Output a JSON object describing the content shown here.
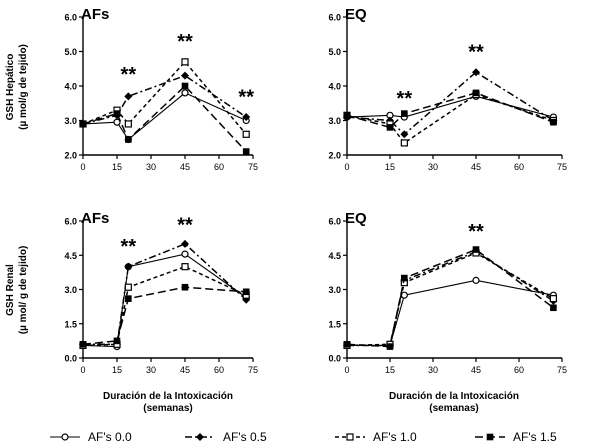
{
  "figure": {
    "left_ylabel_top": [
      "GSH Hepático",
      "(µ mol/g de tejido)"
    ],
    "left_ylabel_bottom": [
      "GSH Renal",
      "(µ mol/ g de tejido)"
    ],
    "xlabel": [
      "Duración de la Intoxicación",
      "(semanas)"
    ],
    "legend": [
      "AF's 0.0",
      "AF's 0.5",
      "AF's 1.0",
      "AF's 1.5"
    ]
  },
  "chart_data": [
    {
      "type": "line",
      "title": "AFs",
      "x": [
        0,
        15,
        20,
        45,
        72
      ],
      "xticks": [
        0,
        15,
        30,
        45,
        60,
        75
      ],
      "yticks": [
        "2.0",
        "3.0",
        "4.0",
        "5.0",
        "6.0"
      ],
      "xlim": [
        0,
        75
      ],
      "ylim": [
        2,
        6
      ],
      "ylabel": "GSH Hepático (µ mol/g de tejido)",
      "xlabel": "",
      "annotations": [
        {
          "x": 20,
          "y": 4.15,
          "text": "**"
        },
        {
          "x": 45,
          "y": 5.1,
          "text": "**"
        },
        {
          "x": 72,
          "y": 3.5,
          "text": "**"
        }
      ],
      "series": [
        {
          "name": "AF's 0.0",
          "values": [
            2.9,
            2.95,
            2.45,
            3.8,
            3.0
          ]
        },
        {
          "name": "AF's 0.5",
          "values": [
            2.9,
            3.15,
            3.7,
            4.3,
            3.1
          ]
        },
        {
          "name": "AF's 1.0",
          "values": [
            2.9,
            3.3,
            2.9,
            4.7,
            2.6
          ]
        },
        {
          "name": "AF's 1.5",
          "values": [
            2.9,
            3.2,
            2.45,
            4.0,
            2.1
          ]
        }
      ]
    },
    {
      "type": "line",
      "title": "EQ",
      "x": [
        0,
        15,
        20,
        45,
        72
      ],
      "xticks": [
        0,
        15,
        30,
        45,
        60,
        75
      ],
      "yticks": [
        "2.0",
        "3.0",
        "4.0",
        "5.0",
        "6.0"
      ],
      "xlim": [
        0,
        75
      ],
      "ylim": [
        2,
        6
      ],
      "ylabel": "",
      "xlabel": "",
      "annotations": [
        {
          "x": 20,
          "y": 3.45,
          "text": "**"
        },
        {
          "x": 45,
          "y": 4.8,
          "text": "**"
        }
      ],
      "series": [
        {
          "name": "AF's 0.0",
          "values": [
            3.1,
            3.15,
            3.1,
            3.7,
            3.1
          ]
        },
        {
          "name": "AF's 0.5",
          "values": [
            3.1,
            3.0,
            2.6,
            4.4,
            3.0
          ]
        },
        {
          "name": "AF's 1.0",
          "values": [
            3.15,
            2.9,
            2.35,
            3.75,
            3.0
          ]
        },
        {
          "name": "AF's 1.5",
          "values": [
            3.15,
            2.8,
            3.2,
            3.8,
            2.95
          ]
        }
      ]
    },
    {
      "type": "line",
      "title": "AFs",
      "x": [
        0,
        15,
        20,
        45,
        72
      ],
      "xticks": [
        0,
        15,
        30,
        45,
        60,
        75
      ],
      "yticks": [
        "0.0",
        "1.5",
        "3.0",
        "4.5",
        "6.0"
      ],
      "xlim": [
        0,
        75
      ],
      "ylim": [
        0,
        6
      ],
      "ylabel": "GSH Renal (µ mol/ g de tejido)",
      "xlabel": "Duración de la Intoxicación (semanas)",
      "annotations": [
        {
          "x": 20,
          "y": 4.6,
          "text": "**"
        },
        {
          "x": 45,
          "y": 5.55,
          "text": "**"
        }
      ],
      "series": [
        {
          "name": "AF's 0.0",
          "values": [
            0.55,
            0.5,
            4.0,
            4.55,
            2.65
          ]
        },
        {
          "name": "AF's 0.5",
          "values": [
            0.6,
            0.6,
            4.0,
            5.0,
            2.55
          ]
        },
        {
          "name": "AF's 1.0",
          "values": [
            0.55,
            0.6,
            3.1,
            4.0,
            2.75
          ]
        },
        {
          "name": "AF's 1.5",
          "values": [
            0.6,
            0.75,
            2.6,
            3.1,
            2.9
          ]
        }
      ]
    },
    {
      "type": "line",
      "title": "EQ",
      "x": [
        0,
        15,
        20,
        45,
        72
      ],
      "xticks": [
        0,
        15,
        30,
        45,
        60,
        75
      ],
      "yticks": [
        "0.0",
        "1.5",
        "3.0",
        "4.5",
        "6.0"
      ],
      "xlim": [
        0,
        75
      ],
      "ylim": [
        0,
        6
      ],
      "ylabel": "",
      "xlabel": "Duración de la Intoxicación (semanas)",
      "annotations": [
        {
          "x": 45,
          "y": 5.25,
          "text": "**"
        }
      ],
      "series": [
        {
          "name": "AF's 0.0",
          "values": [
            0.55,
            0.55,
            2.75,
            3.4,
            2.75
          ]
        },
        {
          "name": "AF's 0.5",
          "values": [
            0.55,
            0.55,
            3.4,
            4.65,
            2.5
          ]
        },
        {
          "name": "AF's 1.0",
          "values": [
            0.55,
            0.6,
            3.3,
            4.6,
            2.6
          ]
        },
        {
          "name": "AF's 1.5",
          "values": [
            0.6,
            0.5,
            3.5,
            4.75,
            2.2
          ]
        }
      ]
    }
  ]
}
